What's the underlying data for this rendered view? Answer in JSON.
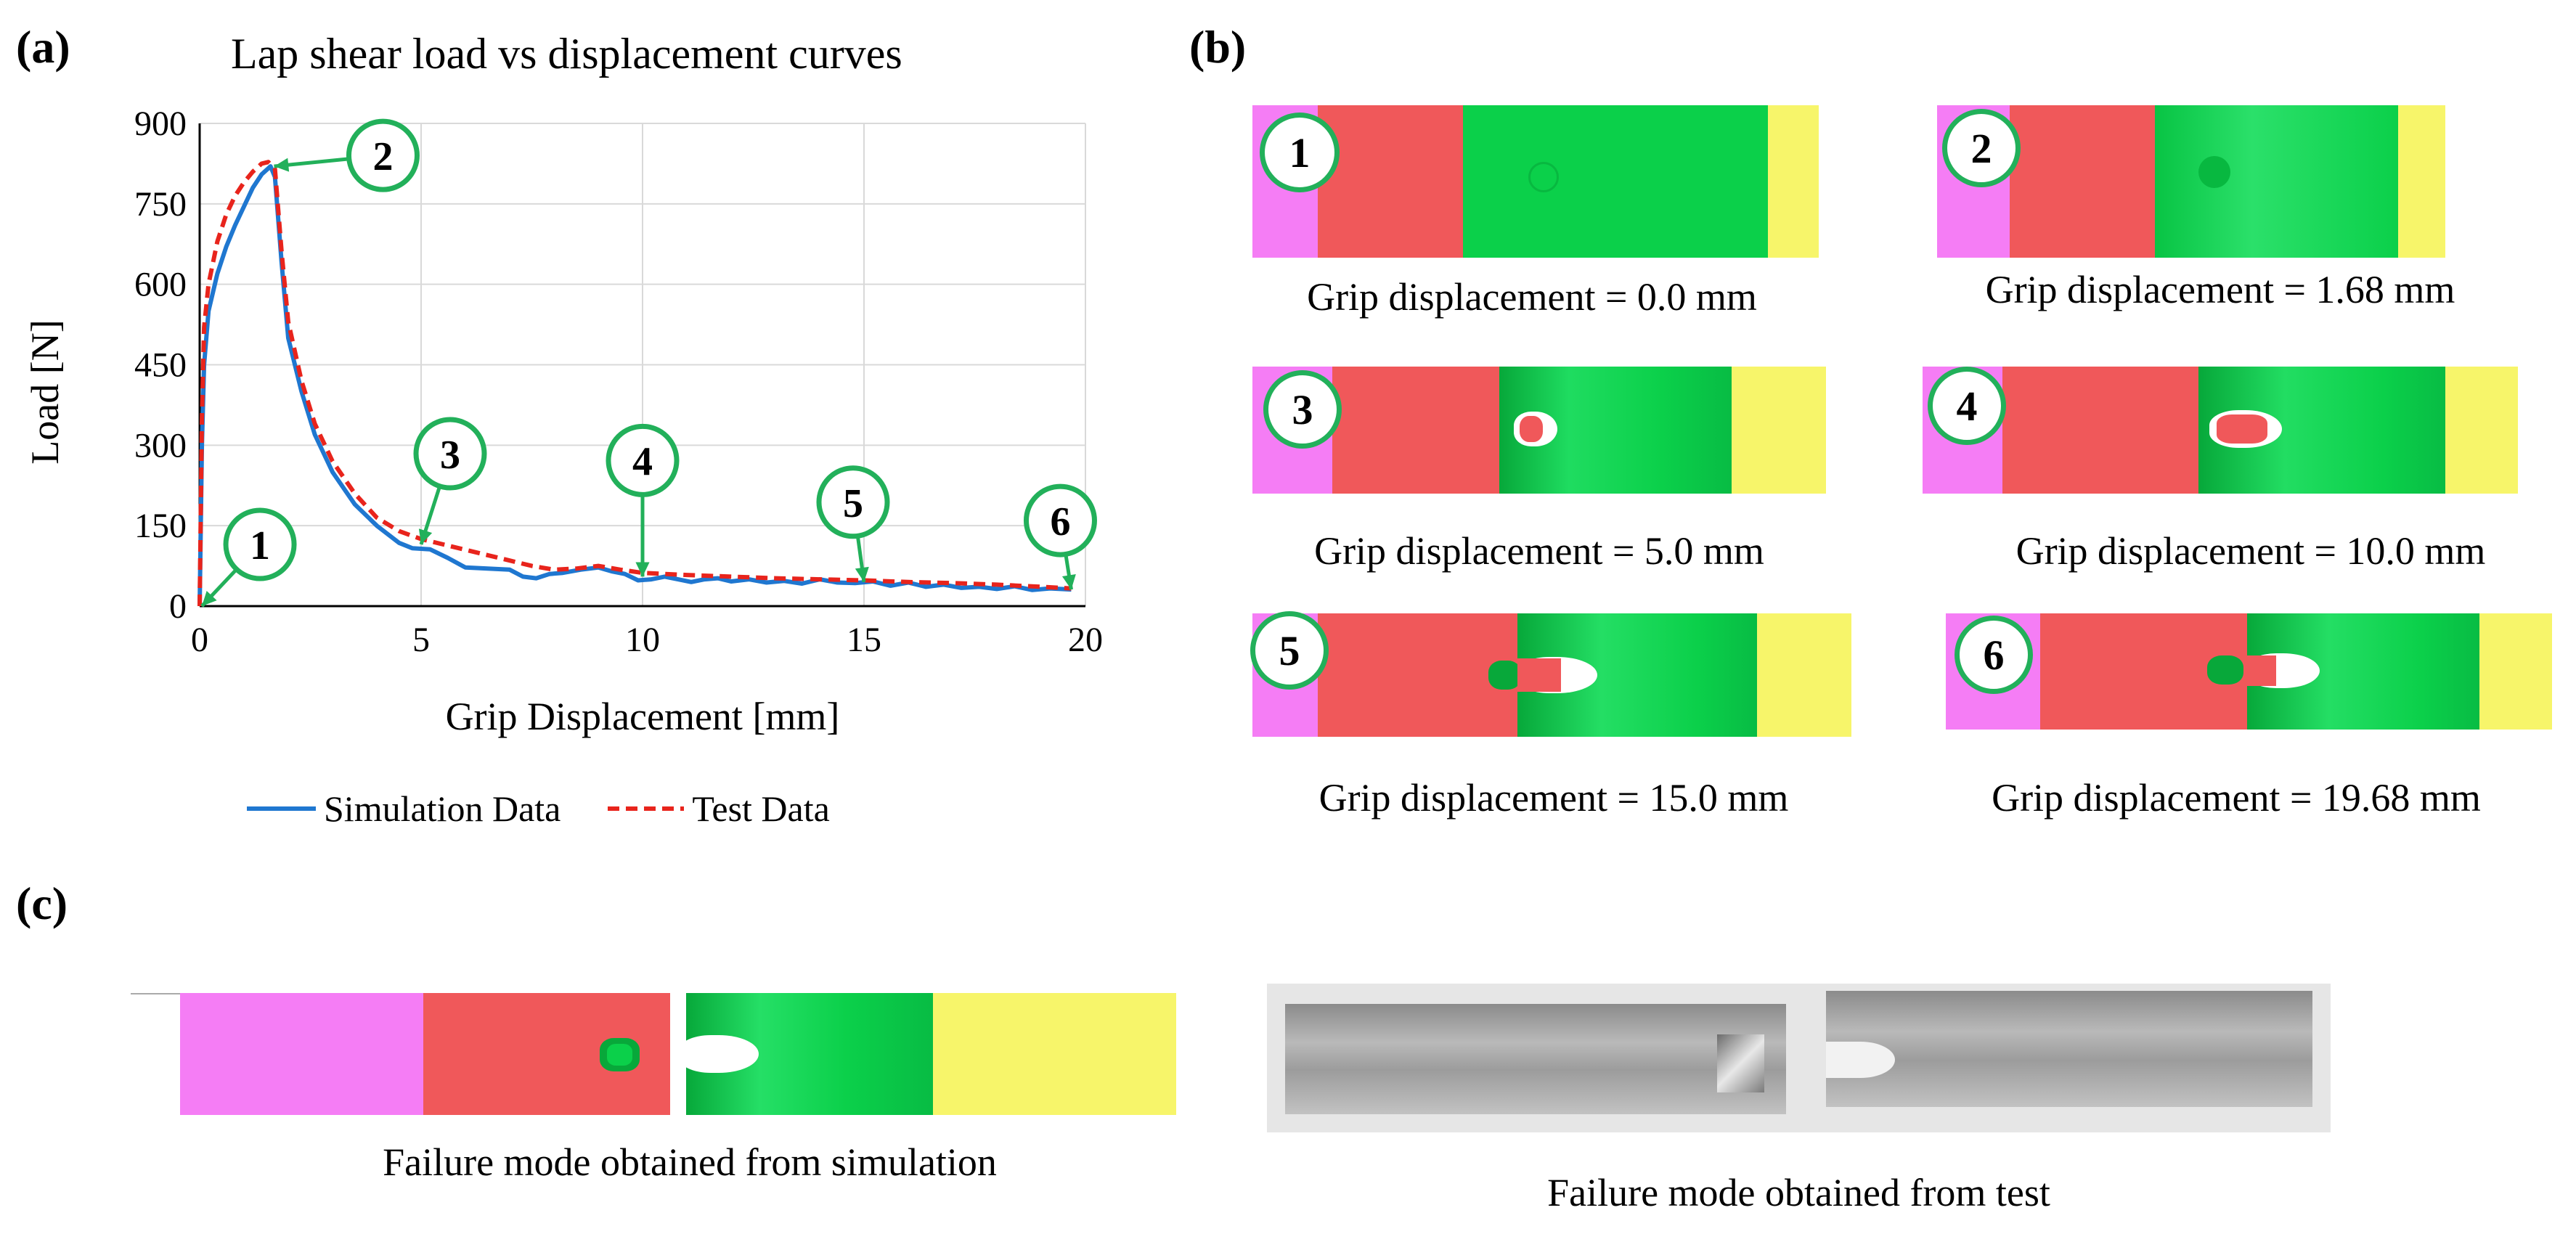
{
  "panels": {
    "a": "(a)",
    "b": "(b)",
    "c": "(c)"
  },
  "chart_data": {
    "type": "line",
    "title": "Lap shear load vs displacement curves",
    "xlabel": "Grip Displacement [mm]",
    "ylabel": "Load [N]",
    "xlim": [
      0,
      20
    ],
    "ylim": [
      0,
      900
    ],
    "xticks": [
      0,
      5,
      10,
      15,
      20
    ],
    "yticks": [
      0,
      150,
      300,
      450,
      600,
      750,
      900
    ],
    "grid": true,
    "series": [
      {
        "name": "Simulation Data",
        "color": "#1f77d0",
        "style": "solid",
        "x": [
          0,
          0.05,
          0.1,
          0.2,
          0.4,
          0.6,
          0.8,
          1.0,
          1.2,
          1.4,
          1.6,
          1.7,
          1.85,
          2.0,
          2.3,
          2.6,
          3.0,
          3.5,
          4.0,
          4.5,
          4.8,
          5.2,
          5.6,
          6.0,
          6.5,
          7.0,
          7.3,
          7.6,
          7.9,
          8.2,
          8.6,
          9.0,
          9.3,
          9.6,
          9.9,
          10.2,
          10.5,
          10.8,
          11.1,
          11.4,
          11.7,
          12.0,
          12.4,
          12.8,
          13.2,
          13.6,
          14.0,
          14.4,
          14.8,
          15.2,
          15.6,
          16.0,
          16.4,
          16.8,
          17.2,
          17.6,
          18.0,
          18.4,
          18.8,
          19.2,
          19.68
        ],
        "y": [
          0,
          300,
          450,
          550,
          620,
          670,
          710,
          745,
          780,
          805,
          820,
          800,
          640,
          500,
          400,
          320,
          250,
          190,
          150,
          118,
          108,
          106,
          90,
          72,
          70,
          68,
          55,
          52,
          60,
          62,
          68,
          72,
          65,
          60,
          48,
          50,
          55,
          50,
          45,
          50,
          52,
          46,
          50,
          44,
          47,
          42,
          50,
          44,
          43,
          46,
          38,
          44,
          36,
          40,
          34,
          36,
          32,
          37,
          30,
          33,
          31
        ]
      },
      {
        "name": "Test Data",
        "color": "#e8241c",
        "style": "dashed",
        "x": [
          0,
          0.05,
          0.1,
          0.2,
          0.4,
          0.6,
          0.8,
          1.0,
          1.2,
          1.4,
          1.55,
          1.7,
          1.85,
          2.0,
          2.3,
          2.6,
          3.0,
          3.5,
          4.0,
          4.5,
          5.0,
          5.5,
          6.0,
          6.5,
          7.0,
          7.5,
          8.0,
          8.5,
          9.0,
          9.5,
          10.0,
          11.0,
          12.0,
          13.0,
          14.0,
          15.0,
          16.0,
          17.0,
          18.0,
          19.0,
          19.68
        ],
        "y": [
          0,
          350,
          520,
          600,
          680,
          730,
          765,
          790,
          810,
          825,
          828,
          815,
          660,
          530,
          420,
          340,
          270,
          210,
          165,
          140,
          125,
          115,
          105,
          95,
          85,
          75,
          68,
          70,
          75,
          68,
          62,
          58,
          55,
          52,
          50,
          48,
          45,
          43,
          40,
          36,
          33
        ]
      }
    ],
    "annotations": [
      {
        "label": "1",
        "x": 0.05,
        "y": 0
      },
      {
        "label": "2",
        "x": 1.68,
        "y": 820
      },
      {
        "label": "3",
        "x": 5.0,
        "y": 115
      },
      {
        "label": "4",
        "x": 10.0,
        "y": 55
      },
      {
        "label": "5",
        "x": 15.0,
        "y": 45
      },
      {
        "label": "6",
        "x": 19.68,
        "y": 31
      }
    ]
  },
  "snapshots": [
    {
      "label": "1",
      "caption": "Grip displacement = 0.0 mm"
    },
    {
      "label": "2",
      "caption": "Grip displacement = 1.68 mm"
    },
    {
      "label": "3",
      "caption": "Grip displacement = 5.0 mm"
    },
    {
      "label": "4",
      "caption": "Grip displacement = 10.0 mm"
    },
    {
      "label": "5",
      "caption": "Grip displacement = 15.0 mm"
    },
    {
      "label": "6",
      "caption": "Grip displacement = 19.68 mm"
    }
  ],
  "failure": {
    "simulation_caption": "Failure mode obtained from simulation",
    "test_caption": "Failure mode obtained from test"
  },
  "colors": {
    "pink": "#f57df5",
    "red": "#f0585a",
    "green": "#0bd04a",
    "yellow": "#f7f56a",
    "badge": "#22b05a"
  }
}
